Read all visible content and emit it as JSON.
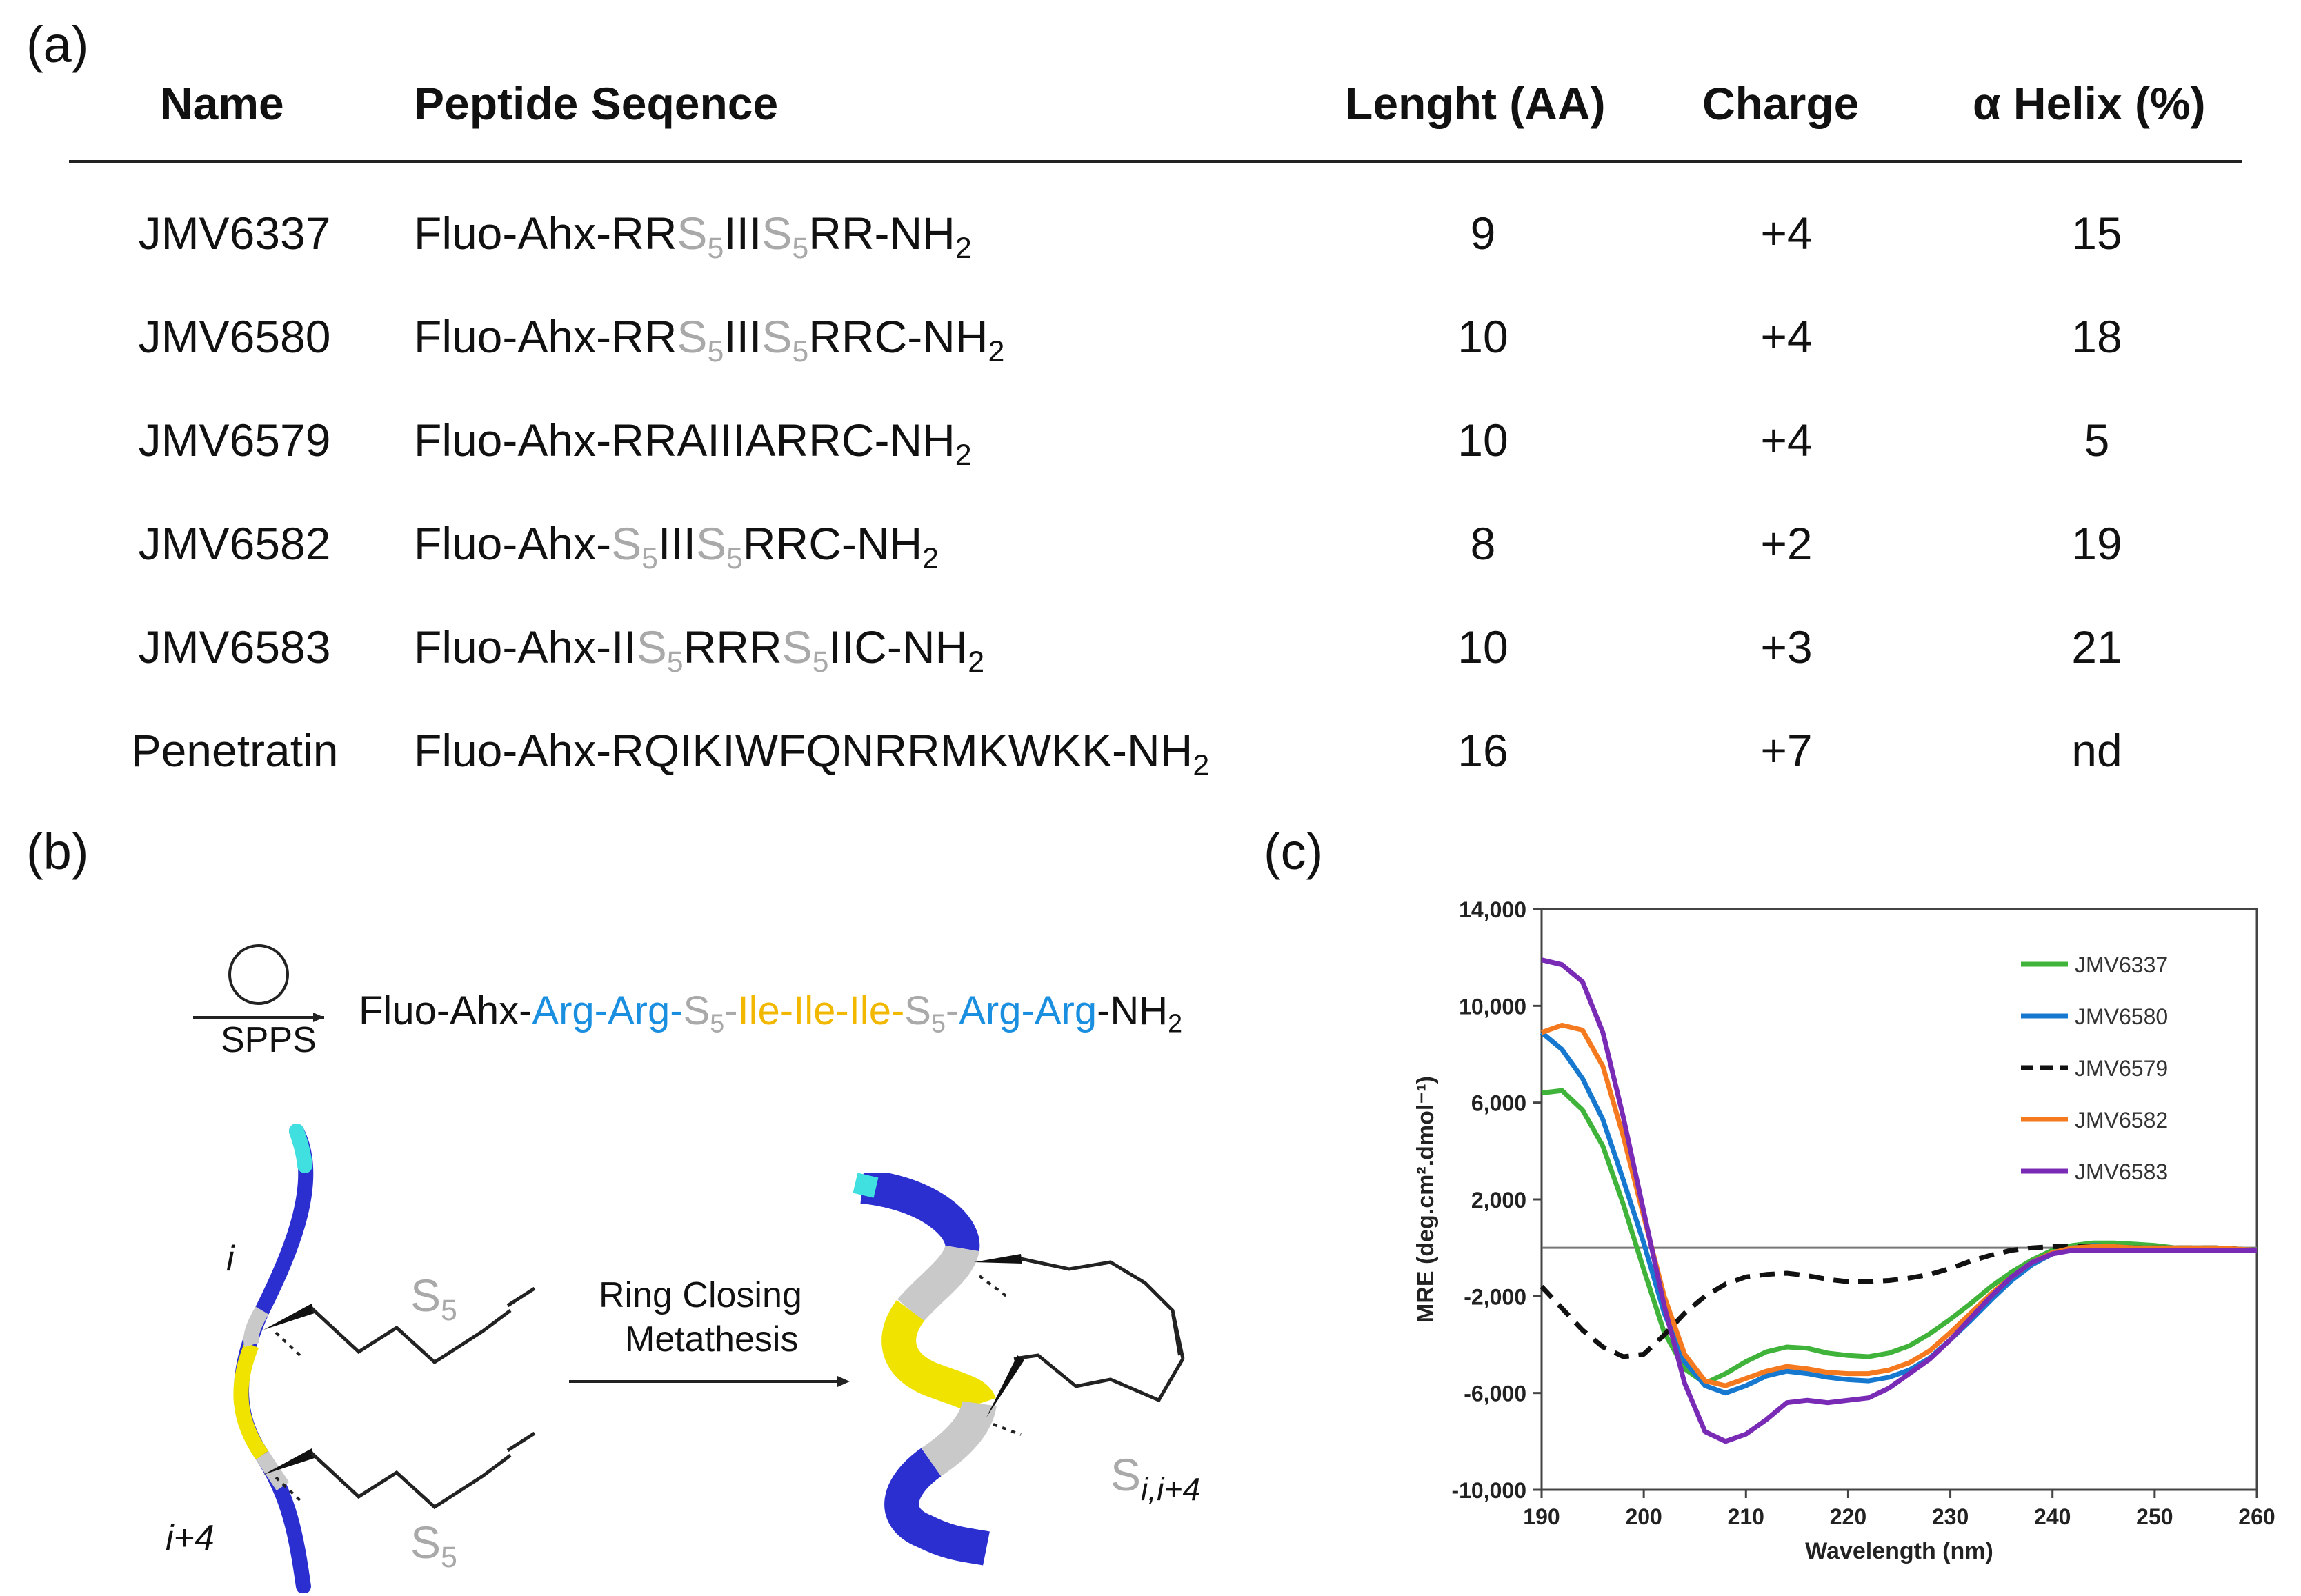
{
  "panel_labels": {
    "a": "(a)",
    "b": "(b)",
    "c": "(c)"
  },
  "table": {
    "headers": {
      "name": "Name",
      "sequence": "Peptide Seqence",
      "length": "Lenght (AA)",
      "charge": "Charge",
      "helix": "α Helix (%)"
    },
    "rows": [
      {
        "name": "JMV6337",
        "seq": [
          [
            "n",
            "Fluo-Ahx-RR"
          ],
          [
            "g",
            "S"
          ],
          [
            "gs",
            "5"
          ],
          [
            "n",
            "III"
          ],
          [
            "g",
            "S"
          ],
          [
            "gs",
            "5"
          ],
          [
            "n",
            "RR-NH"
          ],
          [
            "s",
            "2"
          ]
        ],
        "length": "9",
        "charge": "+4",
        "helix": "15"
      },
      {
        "name": "JMV6580",
        "seq": [
          [
            "n",
            "Fluo-Ahx-RR"
          ],
          [
            "g",
            "S"
          ],
          [
            "gs",
            "5"
          ],
          [
            "n",
            "III"
          ],
          [
            "g",
            "S"
          ],
          [
            "gs",
            "5"
          ],
          [
            "n",
            "RRC-NH"
          ],
          [
            "s",
            "2"
          ]
        ],
        "length": "10",
        "charge": "+4",
        "helix": "18"
      },
      {
        "name": "JMV6579",
        "seq": [
          [
            "n",
            "Fluo-Ahx-RRAIIIARRC-NH"
          ],
          [
            "s",
            "2"
          ]
        ],
        "length": "10",
        "charge": "+4",
        "helix": "5"
      },
      {
        "name": "JMV6582",
        "seq": [
          [
            "n",
            "Fluo-Ahx-"
          ],
          [
            "g",
            "S"
          ],
          [
            "gs",
            "5"
          ],
          [
            "n",
            "III"
          ],
          [
            "g",
            "S"
          ],
          [
            "gs",
            "5"
          ],
          [
            "n",
            "RRC-NH"
          ],
          [
            "s",
            "2"
          ]
        ],
        "length": "8",
        "charge": "+2",
        "helix": "19"
      },
      {
        "name": "JMV6583",
        "seq": [
          [
            "n",
            "Fluo-Ahx-II"
          ],
          [
            "g",
            "S"
          ],
          [
            "gs",
            "5"
          ],
          [
            "n",
            "RRR"
          ],
          [
            "g",
            "S"
          ],
          [
            "gs",
            "5"
          ],
          [
            "n",
            "IIC-NH"
          ],
          [
            "s",
            "2"
          ]
        ],
        "length": "10",
        "charge": "+3",
        "helix": "21"
      },
      {
        "name": "Penetratin",
        "seq": [
          [
            "n",
            "Fluo-Ahx-RQIKIWFQNRRMKWKK-NH"
          ],
          [
            "s",
            "2"
          ]
        ],
        "length": "16",
        "charge": "+7",
        "helix": "nd"
      }
    ]
  },
  "panel_b": {
    "spps_label": "SPPS",
    "sequence": [
      [
        "n",
        "Fluo-Ahx-"
      ],
      [
        "b",
        "Arg-Arg-"
      ],
      [
        "g",
        "S"
      ],
      [
        "gs",
        "5"
      ],
      [
        "g",
        "-"
      ],
      [
        "y",
        "Ile-Ile-Ile-"
      ],
      [
        "g",
        "S"
      ],
      [
        "gs",
        "5"
      ],
      [
        "g",
        "-"
      ],
      [
        "b",
        "Arg-Arg"
      ],
      [
        "n",
        "-NH"
      ],
      [
        "s",
        "2"
      ]
    ],
    "arrow_label_line1": "Ring Closing",
    "arrow_label_line2": "Metathesis",
    "i_label": "i",
    "i4_label": "i+4",
    "s5_label": "S",
    "s5_sub": "5",
    "sii4_label": "S",
    "sii4_sub": "i,i+4"
  },
  "chart_data": {
    "type": "line",
    "title": "",
    "xlabel": "Wavelength (nm)",
    "ylabel": "MRE (deg.cm².dmol⁻¹)",
    "xlim": [
      190,
      260
    ],
    "ylim": [
      -10000,
      14000
    ],
    "xticks": [
      190,
      200,
      210,
      220,
      230,
      240,
      250,
      260
    ],
    "yticks": [
      -10000,
      -6000,
      -2000,
      2000,
      6000,
      10000,
      14000
    ],
    "ytick_labels": [
      "-10,000",
      "-6,000",
      "-2,000",
      "2,000",
      "6,000",
      "10,000",
      "14,000"
    ],
    "legend_position": "top-right",
    "grid": false,
    "series": [
      {
        "name": "JMV6337",
        "color": "#3fb33a",
        "dash": false,
        "x": [
          190,
          192,
          194,
          196,
          198,
          200,
          202,
          204,
          206,
          208,
          210,
          212,
          214,
          216,
          218,
          220,
          222,
          224,
          226,
          228,
          230,
          232,
          234,
          236,
          238,
          240,
          242,
          244,
          246,
          248,
          250,
          252,
          254,
          256,
          258,
          260
        ],
        "y": [
          6400,
          6500,
          5700,
          4200,
          1800,
          -900,
          -3500,
          -5000,
          -5600,
          -5200,
          -4700,
          -4300,
          -4100,
          -4150,
          -4350,
          -4450,
          -4500,
          -4350,
          -4050,
          -3550,
          -2950,
          -2300,
          -1600,
          -1000,
          -500,
          -100,
          100,
          200,
          200,
          150,
          100,
          0,
          0,
          0,
          -50,
          -100
        ]
      },
      {
        "name": "JMV6580",
        "color": "#1778d0",
        "dash": false,
        "x": [
          190,
          192,
          194,
          196,
          198,
          200,
          202,
          204,
          206,
          208,
          210,
          212,
          214,
          216,
          218,
          220,
          222,
          224,
          226,
          228,
          230,
          232,
          234,
          236,
          238,
          240,
          242,
          244,
          246,
          248,
          250,
          252,
          254,
          256,
          258,
          260
        ],
        "y": [
          8900,
          8200,
          7000,
          5300,
          2800,
          200,
          -2700,
          -4700,
          -5700,
          -6000,
          -5700,
          -5300,
          -5100,
          -5200,
          -5350,
          -5450,
          -5500,
          -5350,
          -5050,
          -4550,
          -3800,
          -3000,
          -2150,
          -1350,
          -700,
          -250,
          0,
          100,
          50,
          0,
          0,
          0,
          0,
          0,
          -50,
          -100
        ]
      },
      {
        "name": "JMV6579",
        "color": "#111111",
        "dash": true,
        "x": [
          190,
          192,
          194,
          196,
          198,
          200,
          202,
          204,
          206,
          208,
          210,
          212,
          214,
          216,
          218,
          220,
          222,
          224,
          226,
          228,
          230,
          232,
          234,
          236,
          238,
          240,
          242,
          244,
          246,
          248,
          250,
          252,
          254,
          256,
          258,
          260
        ],
        "y": [
          -1600,
          -2500,
          -3400,
          -4100,
          -4500,
          -4400,
          -3600,
          -2700,
          -2000,
          -1500,
          -1200,
          -1100,
          -1050,
          -1150,
          -1300,
          -1400,
          -1400,
          -1350,
          -1250,
          -1100,
          -850,
          -550,
          -300,
          -100,
          0,
          50,
          50,
          50,
          50,
          0,
          0,
          0,
          0,
          0,
          -50,
          -100
        ]
      },
      {
        "name": "JMV6582",
        "color": "#f57a1f",
        "dash": false,
        "x": [
          190,
          192,
          194,
          196,
          198,
          200,
          202,
          204,
          206,
          208,
          210,
          212,
          214,
          216,
          218,
          220,
          222,
          224,
          226,
          228,
          230,
          232,
          234,
          236,
          238,
          240,
          242,
          244,
          246,
          248,
          250,
          252,
          254,
          256,
          258,
          260
        ],
        "y": [
          8900,
          9200,
          9000,
          7500,
          4600,
          1300,
          -2000,
          -4400,
          -5500,
          -5700,
          -5400,
          -5100,
          -4900,
          -5000,
          -5150,
          -5200,
          -5200,
          -5050,
          -4750,
          -4250,
          -3500,
          -2700,
          -1900,
          -1200,
          -600,
          -200,
          0,
          50,
          50,
          0,
          0,
          0,
          0,
          0,
          -50,
          -100
        ]
      },
      {
        "name": "JMV6583",
        "color": "#7a2bb5",
        "dash": false,
        "x": [
          190,
          192,
          194,
          196,
          198,
          200,
          202,
          204,
          206,
          208,
          210,
          212,
          214,
          216,
          218,
          220,
          222,
          224,
          226,
          228,
          230,
          232,
          234,
          236,
          238,
          240,
          242,
          244,
          246,
          248,
          250,
          252,
          254,
          256,
          258,
          260
        ],
        "y": [
          11900,
          11700,
          11000,
          8900,
          5400,
          1500,
          -2400,
          -5600,
          -7600,
          -8000,
          -7700,
          -7100,
          -6400,
          -6300,
          -6400,
          -6300,
          -6200,
          -5800,
          -5200,
          -4600,
          -3800,
          -2900,
          -2000,
          -1200,
          -600,
          -250,
          -100,
          -100,
          -100,
          -100,
          -100,
          -100,
          -100,
          -100,
          -100,
          -100
        ]
      }
    ]
  },
  "colors": {
    "grey": "#a9a9a9",
    "blue": "#1a8fe0",
    "yellow": "#f2b800",
    "helix_blue": "#2b2fd0",
    "helix_yellow": "#f0e300",
    "helix_cyan": "#40e0e0"
  }
}
